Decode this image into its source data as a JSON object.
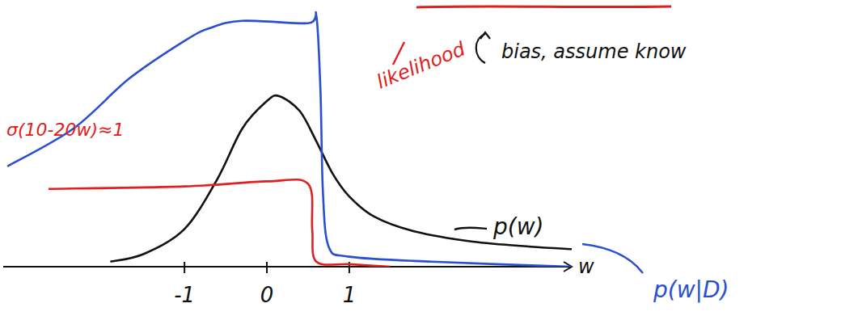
{
  "chart_data": {
    "type": "line",
    "x_label": "w",
    "xlim": [
      -3.2,
      3.7
    ],
    "ylim": [
      0,
      1.05
    ],
    "xticks": [
      -1,
      0,
      1
    ],
    "tick_labels": "x",
    "grid": false,
    "annotations": [
      "σ(10-20w)≈1",
      "bias, assume know"
    ],
    "series": [
      {
        "name": "p(w)",
        "color": "#111111",
        "x": [
          -1.9,
          -1.5,
          -1,
          -0.6,
          -0.3,
          0,
          0.15,
          0.4,
          0.6,
          0.8,
          1,
          1.3,
          1.8,
          2.5,
          3.2,
          3.7
        ],
        "values": [
          0.02,
          0.05,
          0.15,
          0.35,
          0.55,
          0.66,
          0.68,
          0.62,
          0.5,
          0.37,
          0.28,
          0.2,
          0.14,
          0.1,
          0.08,
          0.07
        ]
      },
      {
        "name": "likelihood",
        "color": "#e02020",
        "x": [
          -2.65,
          -1,
          0,
          0.5,
          0.55,
          0.6,
          1,
          1.5
        ],
        "values": [
          0.31,
          0.32,
          0.34,
          0.33,
          0.15,
          0.02,
          0.01,
          0.0
        ]
      },
      {
        "name": "p(w|D)",
        "color": "#2a4fd0",
        "x": [
          -3.15,
          -2.35,
          -1.67,
          -1,
          -0.7,
          -0.3,
          0.5,
          0.6,
          0.65,
          0.68,
          0.75,
          1,
          2,
          3.7
        ],
        "values": [
          0.4,
          0.55,
          0.75,
          0.9,
          0.95,
          0.98,
          0.97,
          1.0,
          0.7,
          0.3,
          0.08,
          0.04,
          0.02,
          0.0
        ]
      }
    ]
  }
}
